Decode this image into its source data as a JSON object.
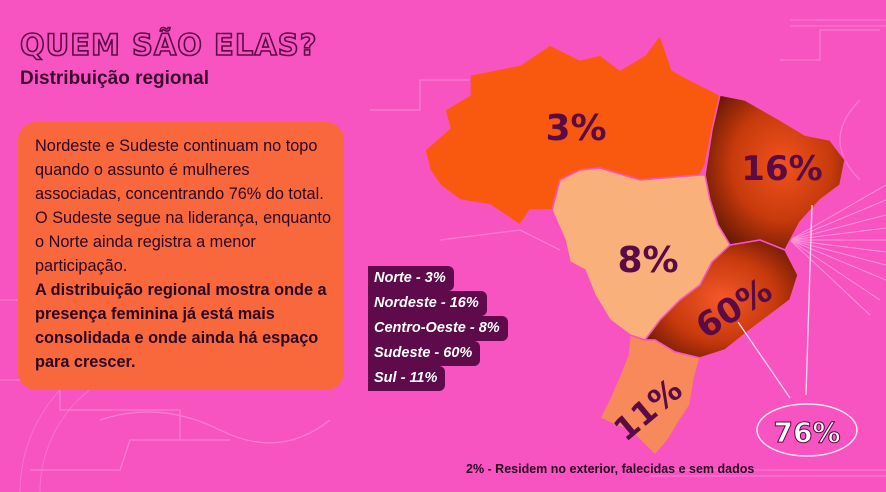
{
  "header": {
    "title": "QUEM SÃO ELAS?",
    "subtitle": "Distribuição regional"
  },
  "card": {
    "text": "Nordeste e Sudeste continuam no topo quando o assunto é mulheres associadas, concentrando 76% do total. O Sudeste segue na liderança, enquanto o Norte ainda registra a menor participação.",
    "highlight": "A distribuição regional mostra onde a presença feminina já está mais consolidada e onde ainda há espaço para crescer."
  },
  "regions": {
    "norte": {
      "label": "3%",
      "color": "#f9590e"
    },
    "nordeste": {
      "label": "16%",
      "color": "#b12d08"
    },
    "centro_oeste": {
      "label": "8%",
      "color": "#f9b07a"
    },
    "sudeste": {
      "label": "60%",
      "color": "#c4380b"
    },
    "sul": {
      "label": "11%",
      "color": "#f7895a"
    }
  },
  "legend": [
    "Norte - 3%",
    "Nordeste - 16%",
    "Centro-Oeste - 8%",
    "Sudeste - 60%",
    "Sul - 11%"
  ],
  "callout": {
    "label": "76%"
  },
  "footnote": "2% - Residem no exterior, falecidas e sem dados"
}
